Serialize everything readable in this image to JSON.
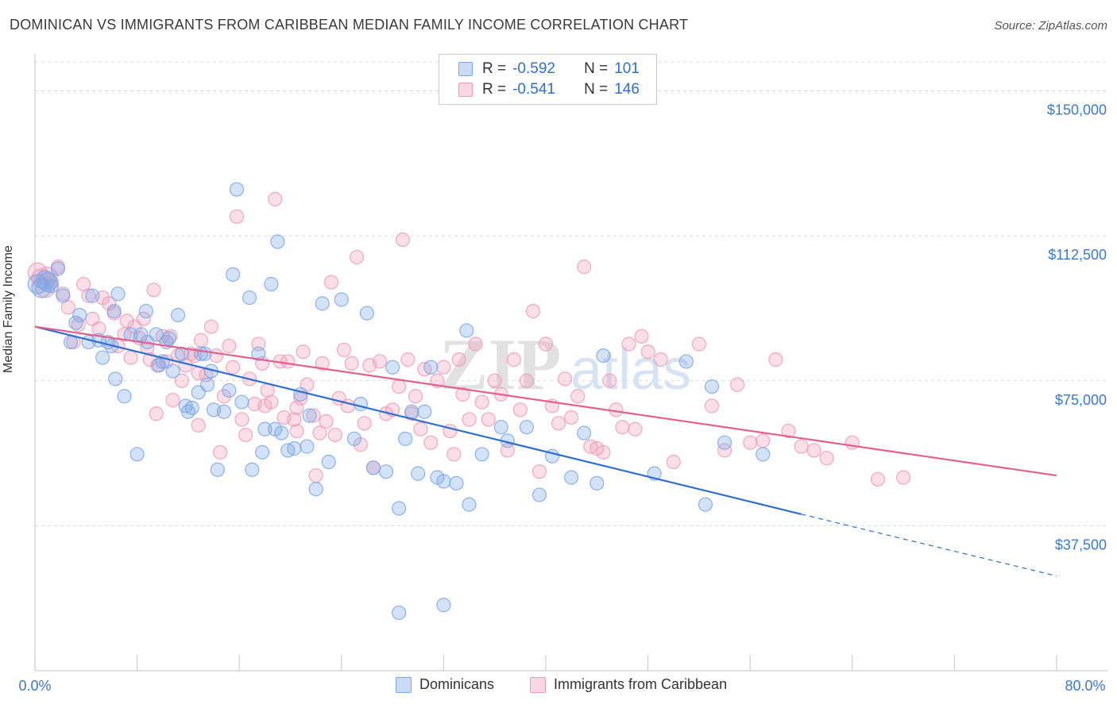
{
  "title": "DOMINICAN VS IMMIGRANTS FROM CARIBBEAN MEDIAN FAMILY INCOME CORRELATION CHART",
  "source": "Source: ZipAtlas.com",
  "watermark": {
    "zip": "ZIP",
    "atlas": "atlas"
  },
  "legend": {
    "series1": {
      "r_label": "R =",
      "r_value": "-0.592",
      "n_label": "N =",
      "n_value": "101",
      "color": "#7ba7e6"
    },
    "series2": {
      "r_label": "R =",
      "r_value": "-0.541",
      "n_label": "N =",
      "n_value": "146",
      "color": "#f09ab8"
    }
  },
  "bottom_legend": {
    "series1": "Dominicans",
    "series2": "Immigrants from Caribbean"
  },
  "chart_data": {
    "type": "scatter",
    "xlabel": "",
    "ylabel": "Median Family Income",
    "x_tick_labels": {
      "min": "0.0%",
      "max": "80.0%"
    },
    "xlim": [
      0,
      80
    ],
    "ylim": [
      0,
      157500
    ],
    "y_ticks": [
      {
        "value": 37500,
        "label": "$37,500"
      },
      {
        "value": 75000,
        "label": "$75,000"
      },
      {
        "value": 112500,
        "label": "$112,500"
      },
      {
        "value": 150000,
        "label": "$150,000"
      }
    ],
    "grid": "horizontal dashed",
    "series": [
      {
        "name": "Dominicans",
        "color": "#7ba7e6",
        "line_color": "#2f6fce",
        "trend": {
          "x0": 0,
          "y0": 89000,
          "x1": 60,
          "y1": 40500,
          "dash_to_x": 80,
          "dash_to_y": 24500
        },
        "points": [
          [
            0.2,
            100000
          ],
          [
            0.5,
            99000
          ],
          [
            0.8,
            101000
          ],
          [
            1.0,
            100500
          ],
          [
            1.3,
            99500
          ],
          [
            1.8,
            104000
          ],
          [
            2.2,
            97000
          ],
          [
            2.8,
            85000
          ],
          [
            3.2,
            90000
          ],
          [
            3.5,
            92000
          ],
          [
            4.2,
            85000
          ],
          [
            4.5,
            97000
          ],
          [
            5.0,
            85500
          ],
          [
            5.3,
            81000
          ],
          [
            5.7,
            85000
          ],
          [
            6.0,
            84000
          ],
          [
            6.2,
            93000
          ],
          [
            6.5,
            97500
          ],
          [
            6.3,
            75500
          ],
          [
            7.0,
            71000
          ],
          [
            7.5,
            87000
          ],
          [
            8.0,
            56000
          ],
          [
            8.3,
            87000
          ],
          [
            8.7,
            93000
          ],
          [
            8.8,
            85000
          ],
          [
            9.5,
            87000
          ],
          [
            9.7,
            79000
          ],
          [
            10.0,
            80000
          ],
          [
            10.3,
            85000
          ],
          [
            10.5,
            86000
          ],
          [
            10.8,
            77500
          ],
          [
            11.2,
            92000
          ],
          [
            11.5,
            82000
          ],
          [
            11.8,
            68500
          ],
          [
            12.0,
            67000
          ],
          [
            12.3,
            68000
          ],
          [
            12.8,
            72000
          ],
          [
            13.0,
            82000
          ],
          [
            13.3,
            82000
          ],
          [
            13.5,
            74000
          ],
          [
            13.8,
            77500
          ],
          [
            14.0,
            67500
          ],
          [
            14.3,
            52000
          ],
          [
            14.8,
            67000
          ],
          [
            15.2,
            72500
          ],
          [
            15.5,
            102500
          ],
          [
            15.8,
            124500
          ],
          [
            16.2,
            69500
          ],
          [
            16.8,
            96500
          ],
          [
            17.0,
            52000
          ],
          [
            17.5,
            82000
          ],
          [
            17.8,
            56500
          ],
          [
            18.0,
            62500
          ],
          [
            18.5,
            100000
          ],
          [
            18.8,
            62500
          ],
          [
            19.0,
            111000
          ],
          [
            19.3,
            61500
          ],
          [
            19.8,
            57000
          ],
          [
            20.3,
            57500
          ],
          [
            20.8,
            71500
          ],
          [
            21.3,
            58000
          ],
          [
            21.5,
            66000
          ],
          [
            22.0,
            47000
          ],
          [
            22.5,
            95000
          ],
          [
            23.0,
            54000
          ],
          [
            24.0,
            96000
          ],
          [
            25.0,
            60000
          ],
          [
            25.5,
            69000
          ],
          [
            26.0,
            92500
          ],
          [
            26.5,
            52500
          ],
          [
            27.5,
            51500
          ],
          [
            28.0,
            78500
          ],
          [
            28.5,
            42000
          ],
          [
            29.0,
            60000
          ],
          [
            29.5,
            67000
          ],
          [
            30.0,
            51000
          ],
          [
            30.5,
            67000
          ],
          [
            31.0,
            78500
          ],
          [
            31.5,
            50000
          ],
          [
            32.0,
            49000
          ],
          [
            33.0,
            48500
          ],
          [
            33.8,
            88000
          ],
          [
            34.0,
            43000
          ],
          [
            35.0,
            56000
          ],
          [
            36.5,
            63000
          ],
          [
            37.0,
            59500
          ],
          [
            38.5,
            63000
          ],
          [
            39.5,
            45500
          ],
          [
            40.5,
            55500
          ],
          [
            42.0,
            50000
          ],
          [
            43.0,
            61500
          ],
          [
            44.0,
            48500
          ],
          [
            44.5,
            81500
          ],
          [
            48.5,
            51000
          ],
          [
            51.0,
            80000
          ],
          [
            53.0,
            73500
          ],
          [
            52.5,
            43000
          ],
          [
            54.0,
            59000
          ],
          [
            57.0,
            56000
          ],
          [
            28.5,
            15000
          ],
          [
            32.0,
            17000
          ]
        ]
      },
      {
        "name": "Immigrants from Caribbean",
        "color": "#f09ab8",
        "line_color": "#e2608d",
        "trend": {
          "x0": 0,
          "y0": 89000,
          "x1": 80,
          "y1": 50500
        },
        "points": [
          [
            0.2,
            103000
          ],
          [
            0.5,
            101500
          ],
          [
            0.8,
            99000
          ],
          [
            1.0,
            102000
          ],
          [
            1.3,
            100500
          ],
          [
            1.8,
            104500
          ],
          [
            2.2,
            97500
          ],
          [
            2.6,
            94000
          ],
          [
            3.0,
            85000
          ],
          [
            3.4,
            89500
          ],
          [
            3.8,
            100000
          ],
          [
            4.2,
            97000
          ],
          [
            4.5,
            91000
          ],
          [
            5.0,
            88500
          ],
          [
            5.3,
            96500
          ],
          [
            5.8,
            95000
          ],
          [
            6.2,
            92500
          ],
          [
            6.5,
            84000
          ],
          [
            7.0,
            87000
          ],
          [
            7.2,
            90500
          ],
          [
            7.5,
            81000
          ],
          [
            7.8,
            89000
          ],
          [
            8.2,
            86000
          ],
          [
            8.5,
            91000
          ],
          [
            8.8,
            83500
          ],
          [
            9.0,
            80500
          ],
          [
            9.3,
            98500
          ],
          [
            9.6,
            79000
          ],
          [
            10.0,
            86500
          ],
          [
            10.3,
            80000
          ],
          [
            10.6,
            86500
          ],
          [
            10.8,
            70000
          ],
          [
            11.2,
            81500
          ],
          [
            11.5,
            75000
          ],
          [
            11.8,
            79000
          ],
          [
            12.2,
            82000
          ],
          [
            12.5,
            81500
          ],
          [
            12.8,
            77000
          ],
          [
            13.0,
            85500
          ],
          [
            13.4,
            76500
          ],
          [
            13.8,
            89000
          ],
          [
            14.2,
            81500
          ],
          [
            14.5,
            56500
          ],
          [
            14.8,
            71000
          ],
          [
            15.2,
            84000
          ],
          [
            15.5,
            78500
          ],
          [
            15.8,
            117500
          ],
          [
            16.2,
            65000
          ],
          [
            16.5,
            61000
          ],
          [
            16.8,
            75500
          ],
          [
            17.2,
            69000
          ],
          [
            17.5,
            84500
          ],
          [
            17.8,
            79500
          ],
          [
            18.2,
            72500
          ],
          [
            18.5,
            69500
          ],
          [
            18.8,
            122000
          ],
          [
            19.2,
            80000
          ],
          [
            19.5,
            65500
          ],
          [
            19.8,
            80000
          ],
          [
            20.3,
            65000
          ],
          [
            20.5,
            68000
          ],
          [
            20.8,
            70500
          ],
          [
            21.0,
            82500
          ],
          [
            21.3,
            74000
          ],
          [
            21.8,
            66000
          ],
          [
            22.0,
            50500
          ],
          [
            22.3,
            61500
          ],
          [
            22.5,
            79500
          ],
          [
            22.8,
            64500
          ],
          [
            23.2,
            100500
          ],
          [
            23.5,
            61000
          ],
          [
            23.8,
            70500
          ],
          [
            24.2,
            83000
          ],
          [
            24.5,
            68500
          ],
          [
            24.8,
            79500
          ],
          [
            25.2,
            107000
          ],
          [
            25.5,
            58500
          ],
          [
            25.8,
            64000
          ],
          [
            26.2,
            79000
          ],
          [
            26.5,
            52500
          ],
          [
            27.0,
            80000
          ],
          [
            27.5,
            66500
          ],
          [
            28.0,
            67500
          ],
          [
            28.5,
            73500
          ],
          [
            28.8,
            111500
          ],
          [
            29.2,
            80500
          ],
          [
            29.5,
            66500
          ],
          [
            29.8,
            71000
          ],
          [
            30.2,
            62500
          ],
          [
            30.5,
            78000
          ],
          [
            31.0,
            59000
          ],
          [
            31.5,
            75000
          ],
          [
            32.0,
            78500
          ],
          [
            32.5,
            62000
          ],
          [
            32.8,
            56000
          ],
          [
            33.2,
            80500
          ],
          [
            33.5,
            71500
          ],
          [
            34.0,
            65000
          ],
          [
            34.5,
            84500
          ],
          [
            35.0,
            69500
          ],
          [
            35.5,
            65000
          ],
          [
            36.0,
            75000
          ],
          [
            36.5,
            71500
          ],
          [
            37.0,
            57000
          ],
          [
            37.5,
            80500
          ],
          [
            38.0,
            67500
          ],
          [
            38.5,
            75000
          ],
          [
            39.0,
            93000
          ],
          [
            39.5,
            51500
          ],
          [
            40.0,
            84500
          ],
          [
            40.5,
            68500
          ],
          [
            41.0,
            64000
          ],
          [
            41.5,
            75500
          ],
          [
            42.0,
            65500
          ],
          [
            42.5,
            71000
          ],
          [
            43.0,
            104500
          ],
          [
            43.5,
            58000
          ],
          [
            44.0,
            57500
          ],
          [
            44.5,
            56500
          ],
          [
            45.0,
            75000
          ],
          [
            45.5,
            67500
          ],
          [
            46.0,
            63000
          ],
          [
            46.5,
            84500
          ],
          [
            47.0,
            62500
          ],
          [
            47.5,
            86500
          ],
          [
            48.0,
            82500
          ],
          [
            49.0,
            80500
          ],
          [
            50.0,
            54000
          ],
          [
            52.0,
            84500
          ],
          [
            53.0,
            68500
          ],
          [
            54.0,
            57000
          ],
          [
            55.0,
            74000
          ],
          [
            56.0,
            59000
          ],
          [
            57.0,
            59500
          ],
          [
            58.0,
            80500
          ],
          [
            59.0,
            62000
          ],
          [
            60.0,
            58000
          ],
          [
            61.0,
            57000
          ],
          [
            62.0,
            55000
          ],
          [
            64.0,
            59000
          ],
          [
            66.0,
            49500
          ],
          [
            68.0,
            50000
          ],
          [
            20.5,
            62000
          ],
          [
            18.0,
            68500
          ],
          [
            12.8,
            63500
          ],
          [
            9.5,
            66500
          ]
        ]
      }
    ]
  }
}
